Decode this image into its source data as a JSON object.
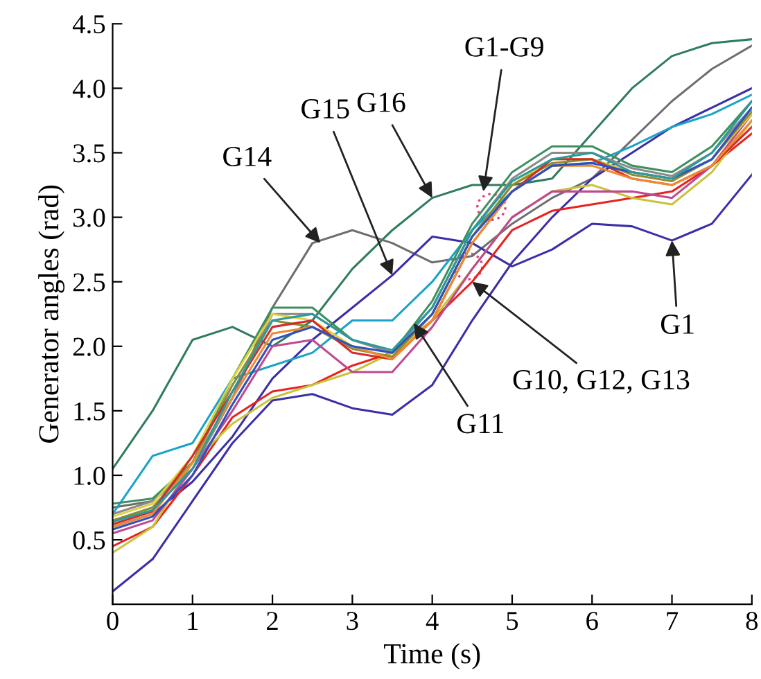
{
  "chart_data": {
    "type": "line",
    "xlabel": "Time (s)",
    "ylabel": "Generator angles (rad)",
    "x": [
      0,
      0.5,
      1,
      1.5,
      2,
      2.5,
      3,
      3.5,
      4,
      4.5,
      5,
      5.5,
      6,
      6.5,
      7,
      7.5,
      8
    ],
    "xlim": [
      0,
      8
    ],
    "xticks": [
      0,
      1,
      2,
      3,
      4,
      5,
      6,
      7,
      8
    ],
    "ylim": [
      0,
      4.5
    ],
    "yticks": [
      {
        "value": 0.5,
        "label": "0.5"
      },
      {
        "value": 1.0,
        "label": "1.0"
      },
      {
        "value": 1.5,
        "label": "1.5"
      },
      {
        "value": 2.0,
        "label": "2.0"
      },
      {
        "value": 2.5,
        "label": "2.5"
      },
      {
        "value": 3.0,
        "label": "3.0"
      },
      {
        "value": 3.5,
        "label": "3.5"
      },
      {
        "value": 4.0,
        "label": "4.0"
      },
      {
        "value": 4.5,
        "label": "4.5"
      }
    ],
    "grid": false,
    "legend": false,
    "marker": "none",
    "line_style": "solid",
    "series": [
      {
        "color": "#2e7d5b",
        "values": [
          1.05,
          1.5,
          2.05,
          2.15,
          2.0,
          2.2,
          2.6,
          2.9,
          3.15,
          3.25,
          3.25,
          3.3,
          3.65,
          4.0,
          4.25,
          4.35,
          4.38
        ]
      },
      {
        "color": "#6e6e6e",
        "values": [
          0.75,
          0.8,
          1.1,
          1.6,
          2.3,
          2.8,
          2.9,
          2.8,
          2.65,
          2.7,
          2.95,
          3.15,
          3.3,
          3.6,
          3.9,
          4.15,
          4.33
        ]
      },
      {
        "color": "#3b2fa8",
        "values": [
          0.6,
          0.7,
          0.95,
          1.3,
          1.75,
          2.05,
          2.3,
          2.55,
          2.85,
          2.8,
          2.62,
          2.75,
          2.95,
          2.93,
          2.82,
          2.95,
          3.33
        ]
      },
      {
        "color": "#3b2fa8",
        "values": [
          0.1,
          0.35,
          0.8,
          1.25,
          1.58,
          1.63,
          1.52,
          1.47,
          1.7,
          2.2,
          2.65,
          3.0,
          3.3,
          3.5,
          3.7,
          3.85,
          4.0
        ]
      },
      {
        "color": "#1aa3c9",
        "values": [
          0.7,
          1.15,
          1.25,
          1.75,
          1.85,
          1.95,
          2.2,
          2.2,
          2.5,
          2.9,
          3.2,
          3.4,
          3.42,
          3.55,
          3.7,
          3.8,
          3.95
        ]
      },
      {
        "color": "#e8231f",
        "values": [
          0.45,
          0.6,
          1.0,
          1.45,
          1.65,
          1.7,
          1.85,
          1.95,
          2.2,
          2.5,
          2.9,
          3.05,
          3.1,
          3.15,
          3.2,
          3.4,
          3.65
        ]
      },
      {
        "color": "#c8c43a",
        "values": [
          0.4,
          0.6,
          1.1,
          1.4,
          1.6,
          1.7,
          1.8,
          1.95,
          2.2,
          2.6,
          3.0,
          3.2,
          3.25,
          3.15,
          3.1,
          3.35,
          3.75
        ]
      },
      {
        "color": "#c04890",
        "values": [
          0.55,
          0.65,
          1.05,
          1.5,
          2.0,
          2.05,
          1.8,
          1.8,
          2.15,
          2.6,
          3.0,
          3.2,
          3.2,
          3.2,
          3.15,
          3.4,
          3.8
        ]
      },
      {
        "color": "#3f8f5f",
        "values": [
          0.78,
          0.82,
          1.1,
          1.75,
          2.3,
          2.3,
          2.05,
          1.95,
          2.35,
          2.95,
          3.35,
          3.55,
          3.55,
          3.4,
          3.35,
          3.55,
          3.9
        ]
      },
      {
        "color": "#8a8a8a",
        "values": [
          0.7,
          0.8,
          1.05,
          1.6,
          2.25,
          2.25,
          2.05,
          1.95,
          2.3,
          2.9,
          3.3,
          3.5,
          3.5,
          3.38,
          3.32,
          3.5,
          3.85
        ]
      },
      {
        "color": "#e0d040",
        "values": [
          0.68,
          0.78,
          1.15,
          1.75,
          2.25,
          2.2,
          2.0,
          1.9,
          2.25,
          2.85,
          3.25,
          3.45,
          3.45,
          3.35,
          3.3,
          3.45,
          3.8
        ]
      },
      {
        "color": "#8c8c30",
        "values": [
          0.65,
          0.75,
          1.1,
          1.7,
          2.2,
          2.15,
          1.98,
          1.92,
          2.25,
          2.85,
          3.25,
          3.42,
          3.45,
          3.33,
          3.28,
          3.45,
          3.82
        ]
      },
      {
        "color": "#d42a2a",
        "values": [
          0.62,
          0.72,
          1.15,
          1.65,
          2.15,
          2.2,
          1.95,
          1.9,
          2.2,
          2.8,
          3.2,
          3.45,
          3.45,
          3.3,
          3.25,
          3.4,
          3.7
        ]
      },
      {
        "color": "#f08a30",
        "values": [
          0.6,
          0.7,
          1.1,
          1.6,
          2.1,
          2.15,
          2.0,
          1.9,
          2.2,
          2.8,
          3.2,
          3.4,
          3.4,
          3.3,
          3.25,
          3.4,
          3.75
        ]
      },
      {
        "color": "#3050c0",
        "values": [
          0.58,
          0.68,
          1.0,
          1.55,
          2.05,
          2.15,
          2.0,
          1.95,
          2.25,
          2.85,
          3.2,
          3.4,
          3.42,
          3.35,
          3.3,
          3.45,
          3.85
        ]
      },
      {
        "color": "#2a9a9a",
        "values": [
          0.64,
          0.73,
          1.05,
          1.65,
          2.2,
          2.25,
          2.05,
          1.97,
          2.3,
          2.9,
          3.28,
          3.45,
          3.5,
          3.35,
          3.3,
          3.5,
          3.9
        ]
      }
    ],
    "annotations": [
      {
        "text": "G14",
        "x": 2.6,
        "y": 2.8
      },
      {
        "text": "G15",
        "x": 3.5,
        "y": 2.55
      },
      {
        "text": "G16",
        "x": 4,
        "y": 3.15
      },
      {
        "text": "G1-G9",
        "x": 4.64,
        "y": 3.2
      },
      {
        "text": "G10, G12, G13",
        "x": 4.5,
        "y": 2.5
      },
      {
        "text": "G11",
        "x": 3.77,
        "y": 2.18
      },
      {
        "text": "G1",
        "x": 7,
        "y": 2.82
      }
    ]
  }
}
